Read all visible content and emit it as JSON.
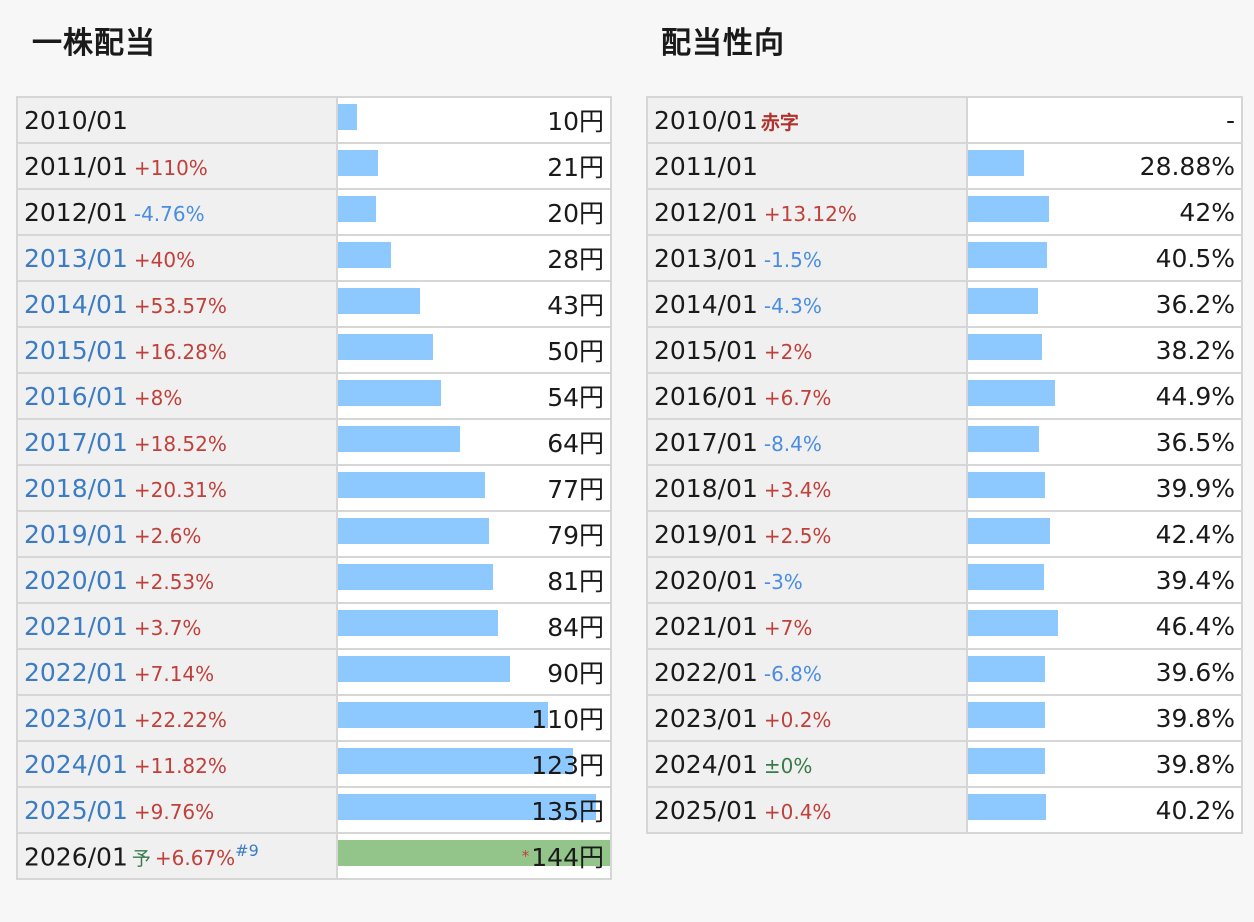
{
  "dividend": {
    "title": "一株配当",
    "rows": [
      {
        "year": "2010/01",
        "link": false,
        "change": "",
        "dir": "",
        "value": "10円",
        "amount": 10
      },
      {
        "year": "2011/01",
        "link": false,
        "change": "+110%",
        "dir": "up",
        "value": "21円",
        "amount": 21
      },
      {
        "year": "2012/01",
        "link": false,
        "change": "-4.76%",
        "dir": "down",
        "value": "20円",
        "amount": 20
      },
      {
        "year": "2013/01",
        "link": true,
        "change": "+40%",
        "dir": "up",
        "value": "28円",
        "amount": 28
      },
      {
        "year": "2014/01",
        "link": true,
        "change": "+53.57%",
        "dir": "up",
        "value": "43円",
        "amount": 43
      },
      {
        "year": "2015/01",
        "link": true,
        "change": "+16.28%",
        "dir": "up",
        "value": "50円",
        "amount": 50
      },
      {
        "year": "2016/01",
        "link": true,
        "change": "+8%",
        "dir": "up",
        "value": "54円",
        "amount": 54
      },
      {
        "year": "2017/01",
        "link": true,
        "change": "+18.52%",
        "dir": "up",
        "value": "64円",
        "amount": 64
      },
      {
        "year": "2018/01",
        "link": true,
        "change": "+20.31%",
        "dir": "up",
        "value": "77円",
        "amount": 77
      },
      {
        "year": "2019/01",
        "link": true,
        "change": "+2.6%",
        "dir": "up",
        "value": "79円",
        "amount": 79
      },
      {
        "year": "2020/01",
        "link": true,
        "change": "+2.53%",
        "dir": "up",
        "value": "81円",
        "amount": 81
      },
      {
        "year": "2021/01",
        "link": true,
        "change": "+3.7%",
        "dir": "up",
        "value": "84円",
        "amount": 84
      },
      {
        "year": "2022/01",
        "link": true,
        "change": "+7.14%",
        "dir": "up",
        "value": "90円",
        "amount": 90
      },
      {
        "year": "2023/01",
        "link": true,
        "change": "+22.22%",
        "dir": "up",
        "value": "110円",
        "amount": 110
      },
      {
        "year": "2024/01",
        "link": true,
        "change": "+11.82%",
        "dir": "up",
        "value": "123円",
        "amount": 123
      },
      {
        "year": "2025/01",
        "link": true,
        "change": "+9.76%",
        "dir": "up",
        "value": "135円",
        "amount": 135
      }
    ],
    "forecast": {
      "year": "2026/01",
      "mark": "予",
      "change": "+6.67%",
      "note": "#9",
      "asterisk": "*",
      "value": "144円",
      "amount": 144
    }
  },
  "payout": {
    "title": "配当性向",
    "rows": [
      {
        "year": "2010/01",
        "deficit": "赤字",
        "change": "",
        "dir": "",
        "value": "-",
        "ratio": 0
      },
      {
        "year": "2011/01",
        "change": "",
        "dir": "",
        "value": "28.88%",
        "ratio": 28.88
      },
      {
        "year": "2012/01",
        "change": "+13.12%",
        "dir": "up",
        "value": "42%",
        "ratio": 42
      },
      {
        "year": "2013/01",
        "change": "-1.5%",
        "dir": "down",
        "value": "40.5%",
        "ratio": 40.5
      },
      {
        "year": "2014/01",
        "change": "-4.3%",
        "dir": "down",
        "value": "36.2%",
        "ratio": 36.2
      },
      {
        "year": "2015/01",
        "change": "+2%",
        "dir": "up",
        "value": "38.2%",
        "ratio": 38.2
      },
      {
        "year": "2016/01",
        "change": "+6.7%",
        "dir": "up",
        "value": "44.9%",
        "ratio": 44.9
      },
      {
        "year": "2017/01",
        "change": "-8.4%",
        "dir": "down",
        "value": "36.5%",
        "ratio": 36.5
      },
      {
        "year": "2018/01",
        "change": "+3.4%",
        "dir": "up",
        "value": "39.9%",
        "ratio": 39.9
      },
      {
        "year": "2019/01",
        "change": "+2.5%",
        "dir": "up",
        "value": "42.4%",
        "ratio": 42.4
      },
      {
        "year": "2020/01",
        "change": "-3%",
        "dir": "down",
        "value": "39.4%",
        "ratio": 39.4
      },
      {
        "year": "2021/01",
        "change": "+7%",
        "dir": "up",
        "value": "46.4%",
        "ratio": 46.4
      },
      {
        "year": "2022/01",
        "change": "-6.8%",
        "dir": "down",
        "value": "39.6%",
        "ratio": 39.6
      },
      {
        "year": "2023/01",
        "change": "+0.2%",
        "dir": "up",
        "value": "39.8%",
        "ratio": 39.8
      },
      {
        "year": "2024/01",
        "change": "±0%",
        "dir": "flat",
        "value": "39.8%",
        "ratio": 39.8
      },
      {
        "year": "2025/01",
        "change": "+0.4%",
        "dir": "up",
        "value": "40.2%",
        "ratio": 40.2
      }
    ]
  },
  "colors": {
    "bar": "#8dc9ff",
    "forecast_bar": "#93c58a",
    "up": "#c0403b",
    "down": "#4a8de0",
    "link": "#3b7cc4"
  }
}
